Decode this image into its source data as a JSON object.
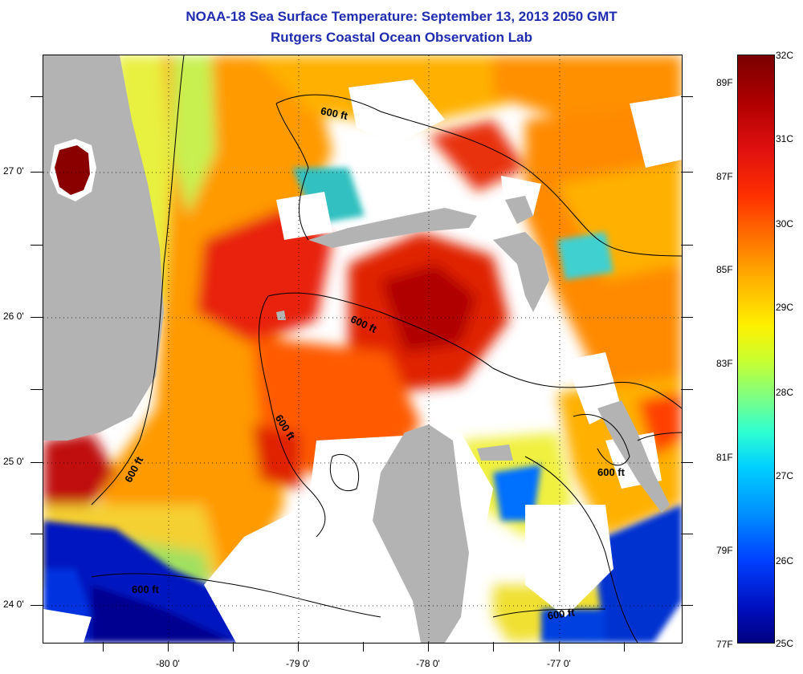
{
  "title": "NOAA-18 Sea Surface Temperature:  September 13, 2013 2050 GMT",
  "subtitle": "Rutgers Coastal Ocean Observation Lab",
  "map": {
    "latitude_labels": [
      {
        "label": "27 0'",
        "lat": 27
      },
      {
        "label": "26 0'",
        "lat": 26
      },
      {
        "label": "25 0'",
        "lat": 25
      },
      {
        "label": "24 0'",
        "lat": 24
      }
    ],
    "longitude_labels": [
      {
        "label": "-80 0'",
        "lon": -80
      },
      {
        "label": "-79 0'",
        "lon": -79
      },
      {
        "label": "-78 0'",
        "lon": -78
      },
      {
        "label": "-77 0'",
        "lon": -77
      }
    ],
    "contour_labels": [
      "600 ft",
      "600 ft",
      "600 ft",
      "600 ft",
      "600 ft",
      "600 ft"
    ],
    "colors": {
      "land": "#b3b3b3",
      "cloud": "#ffffff",
      "contour": "#000000"
    }
  },
  "colorbar": {
    "celsius_labels": [
      "32C",
      "31C",
      "30C",
      "29C",
      "28C",
      "27C",
      "26C",
      "25C"
    ],
    "fahrenheit_labels": [
      "89F",
      "87F",
      "85F",
      "83F",
      "81F",
      "79F",
      "77F"
    ],
    "range_c": [
      25,
      32
    ]
  }
}
